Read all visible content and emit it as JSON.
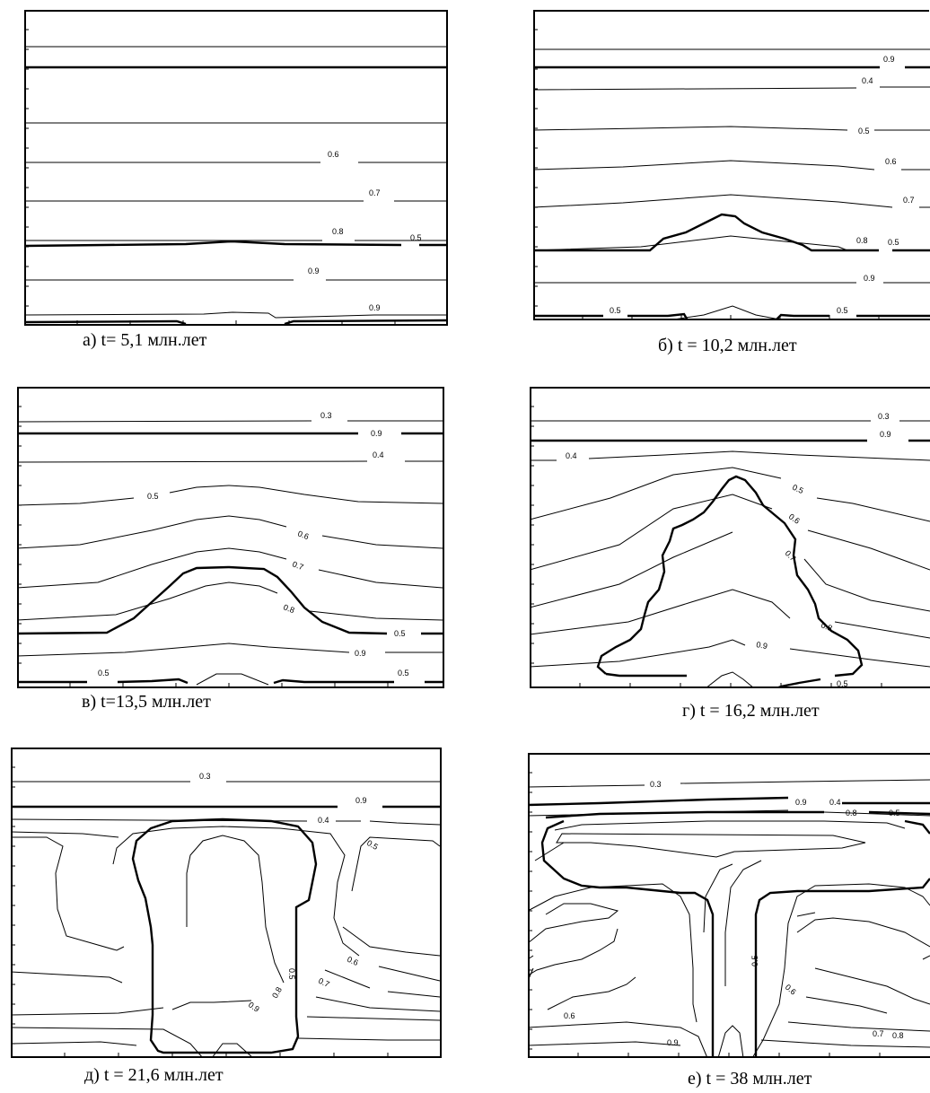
{
  "panels": [
    {
      "id": "a",
      "caption": "а) t= 5,1 млн.лет",
      "labels": [
        "0.6",
        "0.7",
        "0.8",
        "0.5",
        "0.9",
        "0.9"
      ]
    },
    {
      "id": "b",
      "caption": "б) t = 10,2 млн.лет",
      "labels": [
        "0.9",
        "0.4",
        "0.5",
        "0.6",
        "0.7",
        "0.8",
        "0.5",
        "0.9",
        "0.5",
        "0.5"
      ]
    },
    {
      "id": "v",
      "caption": "в) t=13,5 млн.лет",
      "labels": [
        "0.3",
        "0.9",
        "0.4",
        "0.5",
        "0.6",
        "0.7",
        "0.8",
        "0.5",
        "0.9",
        "0.5",
        "0.5"
      ]
    },
    {
      "id": "g",
      "caption": "г) t = 16,2 млн.лет",
      "labels": [
        "0.3",
        "0.9",
        "0.4",
        "0.5",
        "0.6",
        "0.7",
        "0.8",
        "0.9",
        "0.5"
      ]
    },
    {
      "id": "d",
      "caption": "д) t = 21,6 млн.лет",
      "labels": [
        "0.3",
        "0.9",
        "0.4",
        "0.5",
        "0.6",
        "0.7",
        "0.5",
        "0.8",
        "0.9"
      ]
    },
    {
      "id": "e",
      "caption": "е) t = 38 млн.лет",
      "labels": [
        "0.3",
        "0.9",
        "0.4",
        "0.8",
        "0.5",
        "0.5",
        "0.6",
        "0.6",
        "0.7",
        "0.8",
        "0.9"
      ]
    }
  ]
}
